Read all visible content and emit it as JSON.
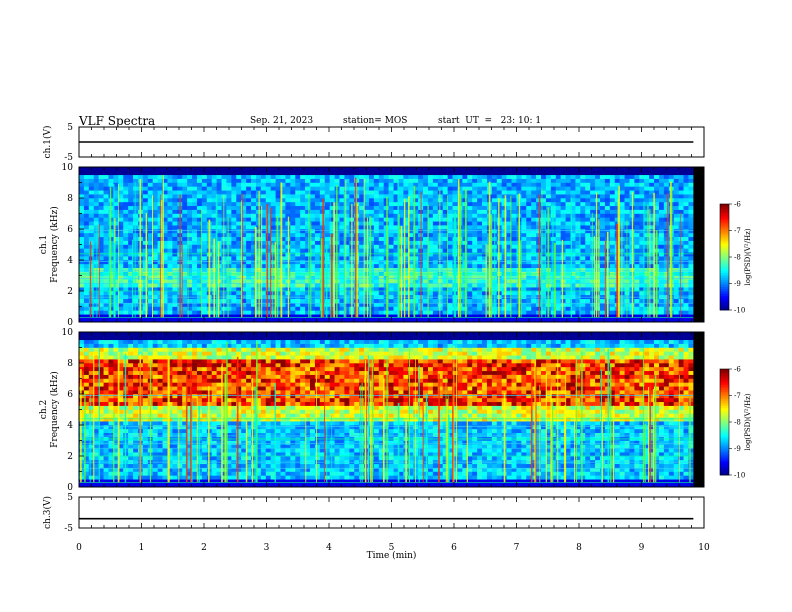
{
  "header": {
    "title": "VLF Spectra",
    "date": "Sep. 21, 2023",
    "station": "station= MOS",
    "start": "start  UT  =   23: 10: 1"
  },
  "chart_data": [
    {
      "type": "line",
      "name": "ch1-waveform",
      "ylabel": "ch.1(V)",
      "ylim": [
        -5,
        5
      ],
      "yticks": [
        "5",
        "-5"
      ],
      "x": [
        0,
        10
      ],
      "values": [
        0,
        0
      ]
    },
    {
      "type": "heatmap",
      "name": "ch1-spectrogram",
      "ylabel_channel": "ch.1",
      "ylabel": "Frequency  (kHz)",
      "ylim": [
        0,
        10
      ],
      "yticks": [
        "0",
        "2",
        "4",
        "6",
        "8",
        "10"
      ],
      "xlim": [
        0,
        10
      ],
      "colorbar": {
        "label": "log(PSD)(V²/Hz)",
        "range": [
          -10,
          -6
        ],
        "ticks": [
          "-6",
          "-7",
          "-8",
          "-9",
          "-10"
        ]
      }
    },
    {
      "type": "heatmap",
      "name": "ch2-spectrogram",
      "ylabel_channel": "ch.2",
      "ylabel": "Frequency  (kHz)",
      "ylim": [
        0,
        10
      ],
      "yticks": [
        "0",
        "2",
        "4",
        "6",
        "8",
        "10"
      ],
      "xlim": [
        0,
        10
      ],
      "colorbar": {
        "label": "log(PSD)(V²/Hz)",
        "range": [
          -10,
          -6
        ],
        "ticks": [
          "-6",
          "-7",
          "-8",
          "-9",
          "-10"
        ]
      }
    },
    {
      "type": "line",
      "name": "ch3-waveform",
      "ylabel": "ch.3(V)",
      "ylim": [
        -5,
        5
      ],
      "yticks": [
        "5",
        "-5"
      ],
      "x": [
        0,
        10
      ],
      "values": [
        -2,
        -2
      ]
    }
  ],
  "xaxis": {
    "label": "Time  (min)",
    "ticks": [
      "0",
      "1",
      "2",
      "3",
      "4",
      "5",
      "6",
      "7",
      "8",
      "9",
      "10"
    ],
    "data_end": 9.83
  }
}
